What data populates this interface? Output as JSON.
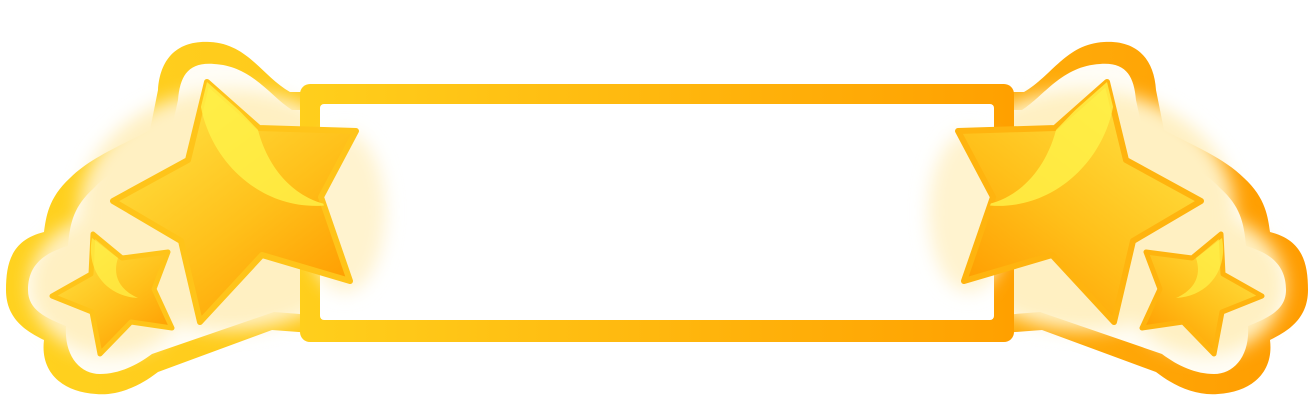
{
  "banner": {
    "text": ""
  },
  "icons": {
    "star": "star-icon"
  },
  "colors": {
    "gold_light": "#ffd21f",
    "gold_mid": "#ffbf1a",
    "orange": "#ff9f00",
    "highlight": "#fff24a",
    "glow": "#fff1c6",
    "panel": "#ffffff"
  }
}
